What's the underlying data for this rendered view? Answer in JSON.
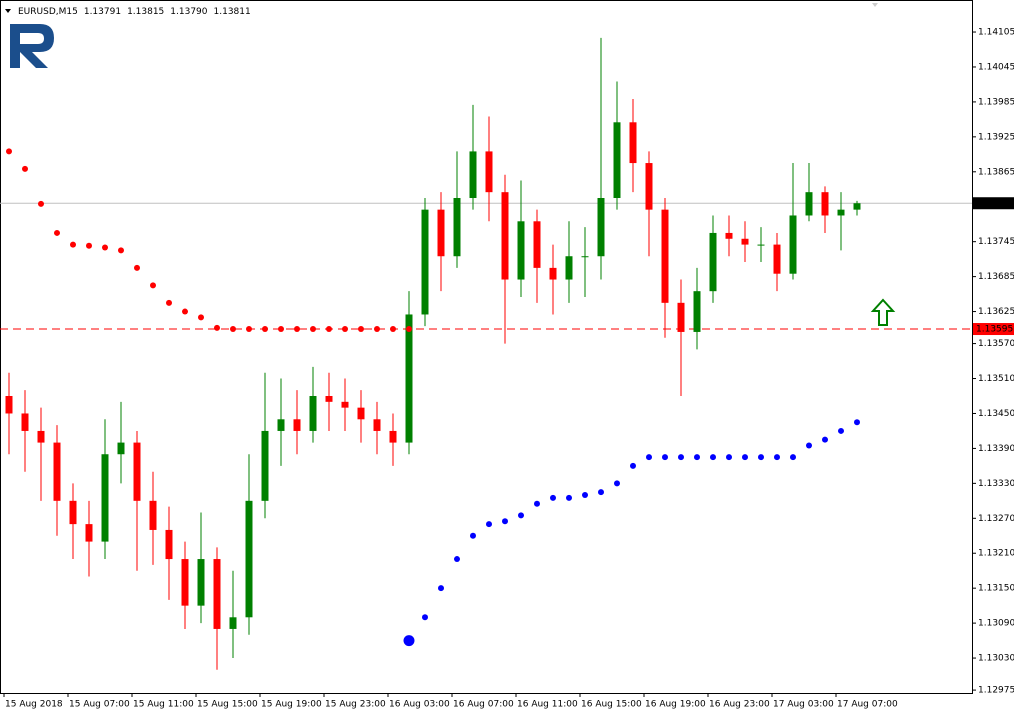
{
  "chart_data": {
    "type": "candlestick",
    "header": {
      "symbol": "EURUSD,M15",
      "values": [
        "1.13791",
        "1.13815",
        "1.13790",
        "1.13811"
      ]
    },
    "categories": [
      "15 Aug 2018",
      null,
      null,
      null,
      "15 Aug 07:00",
      null,
      null,
      null,
      "15 Aug 11:00",
      null,
      null,
      null,
      "15 Aug 15:00",
      null,
      null,
      null,
      "15 Aug 19:00",
      null,
      null,
      null,
      "15 Aug 23:00",
      null,
      null,
      null,
      "16 Aug 03:00",
      null,
      null,
      null,
      "16 Aug 07:00",
      null,
      null,
      null,
      "16 Aug 11:00",
      null,
      null,
      null,
      "16 Aug 15:00",
      null,
      null,
      null,
      "16 Aug 19:00",
      null,
      null,
      null,
      "16 Aug 23:00",
      null,
      null,
      null,
      "17 Aug 03:00",
      null,
      null,
      null,
      "17 Aug 07:00",
      null
    ],
    "open": [
      1.1348,
      1.1345,
      1.1342,
      1.134,
      1.133,
      1.1326,
      1.1323,
      1.1338,
      1.134,
      1.133,
      1.1325,
      1.132,
      1.1312,
      1.132,
      1.1308,
      1.131,
      1.133,
      1.1342,
      1.1344,
      1.1342,
      1.1348,
      1.1347,
      1.1346,
      1.1344,
      1.1342,
      1.134,
      1.1362,
      1.138,
      1.1372,
      1.1382,
      1.139,
      1.1383,
      1.1368,
      1.1378,
      1.137,
      1.1368,
      1.1372,
      1.1372,
      1.1382,
      1.1395,
      1.1388,
      1.138,
      1.1364,
      1.1359,
      1.1366,
      1.1376,
      1.1375,
      1.1374,
      1.1374,
      1.1369,
      1.1379,
      1.1383,
      1.1379,
      1.138
    ],
    "high": [
      1.1352,
      1.1349,
      1.1346,
      1.1343,
      1.1333,
      1.133,
      1.1344,
      1.1347,
      1.1342,
      1.1335,
      1.1329,
      1.1323,
      1.1328,
      1.1322,
      1.1318,
      1.1338,
      1.1352,
      1.1351,
      1.1349,
      1.1353,
      1.1352,
      1.1351,
      1.1349,
      1.1347,
      1.1345,
      1.1366,
      1.1382,
      1.1383,
      1.139,
      1.1398,
      1.1396,
      1.1386,
      1.1385,
      1.138,
      1.1374,
      1.1378,
      1.1377,
      1.14095,
      1.1402,
      1.1399,
      1.139,
      1.1382,
      1.1368,
      1.137,
      1.1379,
      1.1379,
      1.1378,
      1.1377,
      1.1376,
      1.1388,
      1.1388,
      1.1384,
      1.1383,
      1.13815
    ],
    "low": [
      1.1338,
      1.1335,
      1.133,
      1.1324,
      1.132,
      1.1317,
      1.132,
      1.1333,
      1.1318,
      1.1319,
      1.1313,
      1.1308,
      1.1309,
      1.1301,
      1.1303,
      1.1307,
      1.1327,
      1.1336,
      1.1338,
      1.134,
      1.1342,
      1.1342,
      1.134,
      1.1338,
      1.1336,
      1.1338,
      1.136,
      1.1366,
      1.137,
      1.138,
      1.1378,
      1.1357,
      1.1365,
      1.1364,
      1.1362,
      1.1364,
      1.1365,
      1.1368,
      1.138,
      1.1383,
      1.1372,
      1.1358,
      1.1348,
      1.1356,
      1.1364,
      1.1372,
      1.1371,
      1.1371,
      1.1366,
      1.1368,
      1.1378,
      1.1376,
      1.1373,
      1.1379
    ],
    "close": [
      1.1345,
      1.1342,
      1.134,
      1.133,
      1.1326,
      1.1323,
      1.1338,
      1.134,
      1.133,
      1.1325,
      1.132,
      1.1312,
      1.132,
      1.1308,
      1.131,
      1.133,
      1.1342,
      1.1344,
      1.1342,
      1.1348,
      1.1347,
      1.1346,
      1.1344,
      1.1342,
      1.134,
      1.1362,
      1.138,
      1.1372,
      1.1382,
      1.139,
      1.1383,
      1.1368,
      1.1378,
      1.137,
      1.1368,
      1.1372,
      1.1372,
      1.1382,
      1.1395,
      1.1388,
      1.138,
      1.1364,
      1.1359,
      1.1366,
      1.1376,
      1.1375,
      1.1374,
      1.1374,
      1.1369,
      1.1379,
      1.1383,
      1.1379,
      1.138,
      1.13811
    ],
    "up_color": "#008000",
    "down_color": "#ff0000",
    "stops": [
      {
        "color": "#ff0000",
        "values": [
          1.139,
          1.1387,
          1.1381,
          1.1376,
          1.1374,
          1.13738,
          1.13735,
          1.1373,
          1.137,
          1.1367,
          1.1364,
          1.13625,
          1.13615,
          1.13597,
          1.13595,
          1.13595,
          1.13595,
          1.13595,
          1.13595,
          1.13595,
          1.13595,
          1.13595,
          1.13595,
          1.13595,
          1.13595,
          1.13595,
          null,
          null,
          null,
          null,
          null,
          null,
          null,
          null,
          null,
          null,
          null,
          null,
          null,
          null,
          null,
          null,
          null,
          null,
          null,
          null,
          null,
          null,
          null,
          null,
          null,
          null,
          null,
          null
        ]
      },
      {
        "color": "#0000ff",
        "values": [
          null,
          null,
          null,
          null,
          null,
          null,
          null,
          null,
          null,
          null,
          null,
          null,
          null,
          null,
          null,
          null,
          null,
          null,
          null,
          null,
          null,
          null,
          null,
          null,
          null,
          1.1306,
          1.131,
          1.1315,
          1.132,
          1.1324,
          1.1326,
          1.13265,
          1.13275,
          1.13295,
          1.13305,
          1.13305,
          1.1331,
          1.13315,
          1.1333,
          1.1336,
          1.13375,
          1.13375,
          1.13375,
          1.13375,
          1.13375,
          1.13375,
          1.13375,
          1.13375,
          1.13375,
          1.13375,
          1.13395,
          1.13405,
          1.1342,
          1.13435
        ]
      }
    ],
    "price_lines": [
      {
        "value": 1.13811,
        "color": "#c0c0c0",
        "label_bg": "#000000",
        "dashed": false
      },
      {
        "value": 1.13595,
        "color": "#ff0000",
        "label_bg": "#ff0000",
        "dashed": true
      }
    ],
    "ylim": [
      1.1297,
      1.1416
    ],
    "yticks": [
      {
        "value": 1.14105,
        "label": "1.14105"
      },
      {
        "value": 1.14045,
        "label": "1.14045"
      },
      {
        "value": 1.13985,
        "label": "1.13985"
      },
      {
        "value": 1.13925,
        "label": "1.13925"
      },
      {
        "value": 1.13865,
        "label": "1.13865"
      },
      {
        "value": 1.13745,
        "label": "1.13745"
      },
      {
        "value": 1.13685,
        "label": "1.13685"
      },
      {
        "value": 1.13625,
        "label": "1.13625"
      },
      {
        "value": 1.1357,
        "label": "1.13570"
      },
      {
        "value": 1.1351,
        "label": "1.13510"
      },
      {
        "value": 1.1345,
        "label": "1.13450"
      },
      {
        "value": 1.1339,
        "label": "1.13390"
      },
      {
        "value": 1.1333,
        "label": "1.13330"
      },
      {
        "value": 1.1327,
        "label": "1.13270"
      },
      {
        "value": 1.1321,
        "label": "1.13210"
      },
      {
        "value": 1.1315,
        "label": "1.13150"
      },
      {
        "value": 1.1309,
        "label": "1.13090"
      },
      {
        "value": 1.1303,
        "label": "1.13030"
      },
      {
        "value": 1.12975,
        "label": "1.12975"
      }
    ]
  }
}
